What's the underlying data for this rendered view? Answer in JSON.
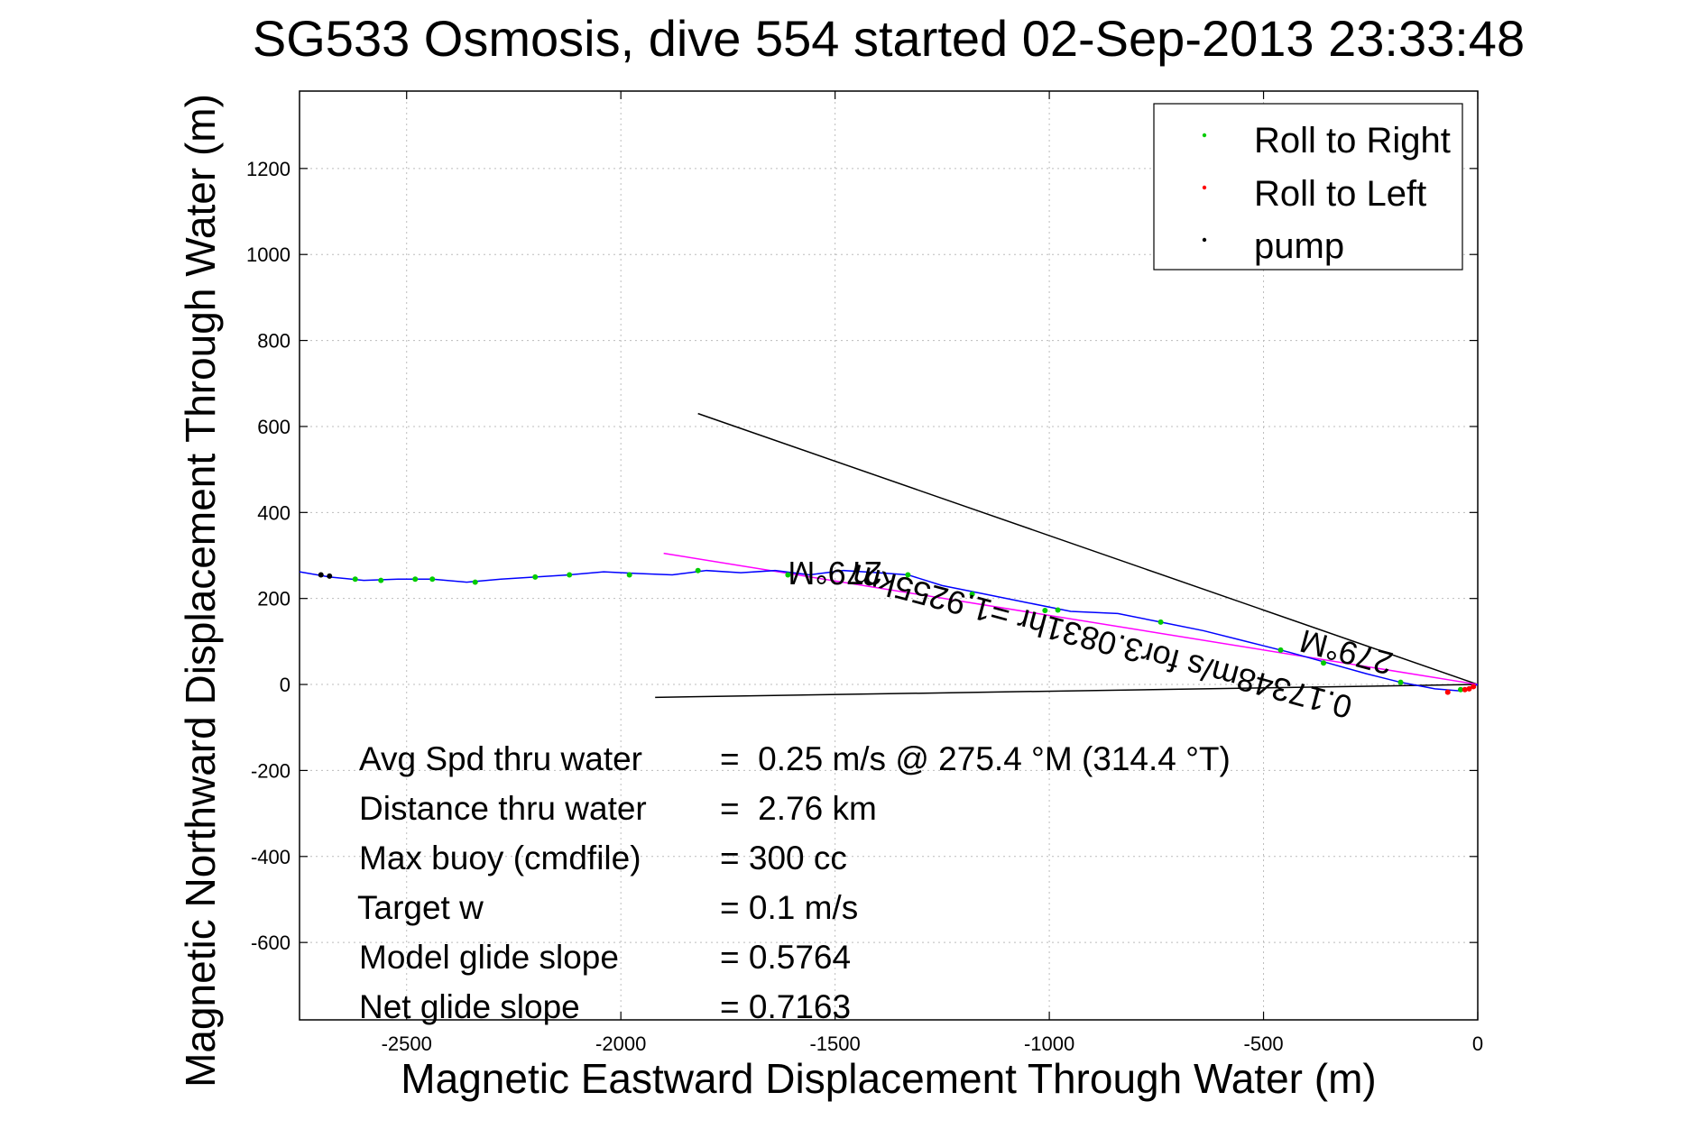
{
  "chart_data": {
    "type": "line",
    "title": "SG533 Osmosis, dive 554 started 02-Sep-2013 23:33:48",
    "xlabel": "Magnetic Eastward Displacement Through Water (m)",
    "ylabel": "Magnetic Northward Displacement Through Water (m)",
    "xlim": [
      -2750,
      0
    ],
    "ylim": [
      -780,
      1380
    ],
    "xticks": [
      -2500,
      -2000,
      -1500,
      -1000,
      -500,
      0
    ],
    "yticks": [
      -600,
      -400,
      -200,
      0,
      200,
      400,
      600,
      800,
      1000,
      1200
    ],
    "grid": true,
    "legend": {
      "placement": "top-right",
      "entries": [
        {
          "label": "Roll to Right",
          "color": "#00cc00"
        },
        {
          "label": "Roll to Left",
          "color": "#ff0000"
        },
        {
          "label": "pump",
          "color": "#000000"
        }
      ]
    },
    "track": {
      "color": "#0000ff",
      "x": [
        0,
        -40,
        -100,
        -180,
        -260,
        -350,
        -440,
        -540,
        -640,
        -740,
        -840,
        -950,
        -1050,
        -1150,
        -1250,
        -1330,
        -1400,
        -1480,
        -1560,
        -1640,
        -1720,
        -1800,
        -1880,
        -1960,
        -2040,
        -2120,
        -2200,
        -2280,
        -2360,
        -2440,
        -2520,
        -2600,
        -2680,
        -2750
      ],
      "y": [
        0,
        -15,
        -10,
        5,
        25,
        50,
        75,
        100,
        125,
        145,
        165,
        170,
        190,
        210,
        230,
        255,
        260,
        265,
        255,
        265,
        260,
        265,
        255,
        258,
        262,
        255,
        250,
        245,
        238,
        245,
        245,
        242,
        250,
        262
      ]
    },
    "roll_right_points": {
      "x": [
        -40,
        -180,
        -360,
        -460,
        -740,
        -980,
        -1010,
        -1180,
        -1330,
        -1610,
        -1820,
        -1980,
        -2120,
        -2200,
        -2340,
        -2440,
        -2480,
        -2560,
        -2620
      ],
      "y": [
        -12,
        5,
        50,
        80,
        145,
        173,
        172,
        210,
        255,
        255,
        265,
        255,
        255,
        250,
        238,
        245,
        245,
        242,
        245
      ]
    },
    "roll_left_points": {
      "x": [
        -10,
        -20,
        -30,
        -70
      ],
      "y": [
        -5,
        -10,
        -12,
        -18
      ]
    },
    "pump_points": {
      "x": [
        -2700,
        -2680
      ],
      "y": [
        255,
        252
      ]
    },
    "heading_lines": [
      {
        "x": [
          0,
          -1820
        ],
        "y": [
          0,
          630
        ],
        "color": "#000000"
      },
      {
        "x": [
          0,
          -1920
        ],
        "y": [
          0,
          -30
        ],
        "color": "#000000"
      }
    ],
    "fit_line": {
      "x": [
        0,
        -1900
      ],
      "y": [
        0,
        305
      ],
      "color": "#ff00ff"
    },
    "annotations": [
      {
        "text": "279°M",
        "x": -1500,
        "y": 285,
        "rotation": 180
      },
      {
        "text": "279°M",
        "x": -300,
        "y": 100,
        "rotation": 195
      },
      {
        "text": "0.17348m/s for3.0831hr =1.9255km",
        "x": -870,
        "y": 125,
        "rotation": 195
      }
    ],
    "stats": [
      {
        "label": "Avg Spd thru water",
        "value": "=  0.25 m/s @ 275.4 °M (314.4 °T)"
      },
      {
        "label": "Distance thru water",
        "value": "=  2.76 km"
      },
      {
        "label": "Max buoy (cmdfile)",
        "value": "= 300 cc"
      },
      {
        "label": "Target w",
        "value": "= 0.1 m/s"
      },
      {
        "label": "Model glide slope",
        "value": "= 0.5764"
      },
      {
        "label": "Net glide slope",
        "value": "= 0.7163"
      }
    ]
  }
}
